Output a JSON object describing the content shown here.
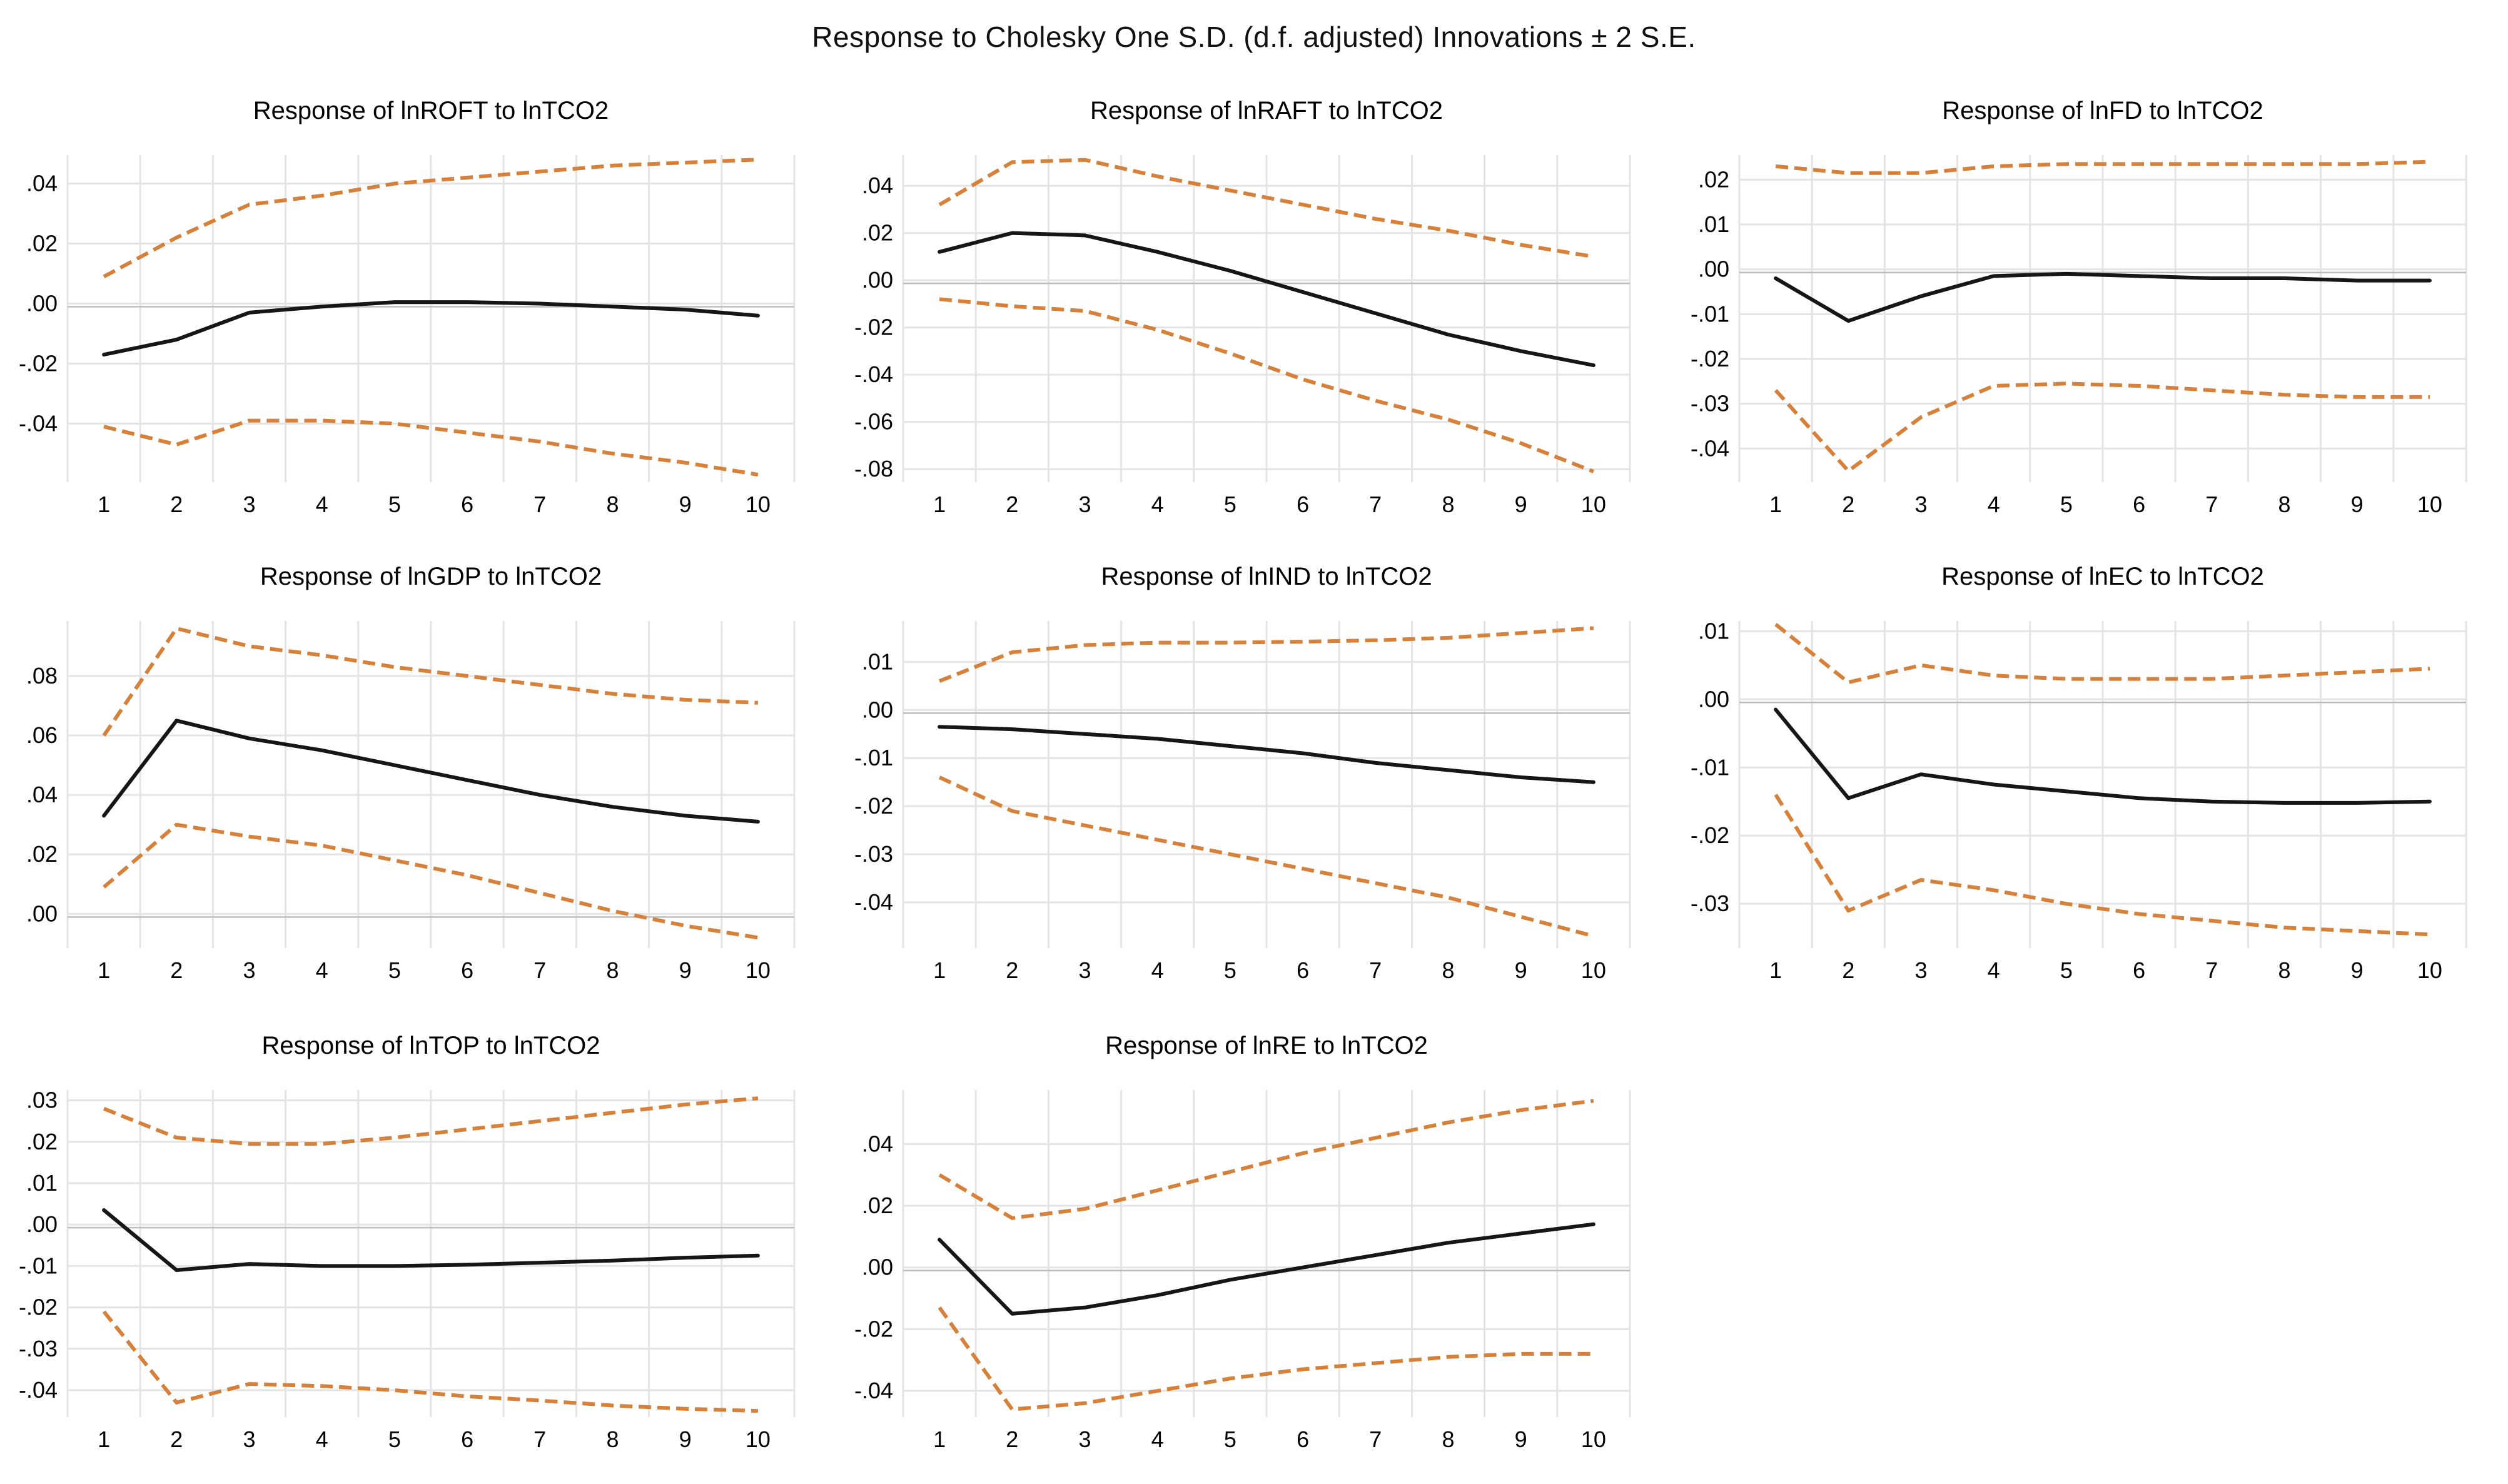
{
  "colors": {
    "response_line": "#161616",
    "band_line": "#d6803a",
    "gridline": "#e4e4e4",
    "zero_axis": "#bdbdbd",
    "text": "#000000",
    "background": "#ffffff"
  },
  "chart_data": {
    "type": "line",
    "figure_title": "Response to Cholesky One S.D. (d.f. adjusted) Innovations ± 2 S.E.",
    "layout": {
      "rows": 3,
      "cols": 3,
      "empty_cells": [
        "row3-col3"
      ],
      "grid": "on",
      "legend": "none"
    },
    "x": [
      1,
      2,
      3,
      4,
      5,
      6,
      7,
      8,
      9,
      10
    ],
    "x_tick_labels": [
      "1",
      "2",
      "3",
      "4",
      "5",
      "6",
      "7",
      "8",
      "9",
      "10"
    ],
    "xlim": [
      0.5,
      10.5
    ],
    "series_styles": {
      "response": {
        "stroke": "solid",
        "color_key": "response_line"
      },
      "upper_2se_band": {
        "stroke": "dashed",
        "color_key": "band_line"
      },
      "lower_2se_band": {
        "stroke": "dashed",
        "color_key": "band_line"
      }
    },
    "charts": [
      {
        "id": "lnROFT",
        "title": "Response of lnROFT to lnTCO2",
        "ylim": [
          -0.0595,
          0.0495
        ],
        "y_ticks": {
          "values": [
            0.04,
            0.02,
            0.0,
            -0.02,
            -0.04
          ],
          "labels": [
            ".04",
            ".02",
            ".00",
            "-.02",
            "-.04"
          ]
        },
        "series": [
          {
            "name": "upper_2se_band",
            "values": [
              0.009,
              0.022,
              0.033,
              0.036,
              0.04,
              0.042,
              0.044,
              0.046,
              0.047,
              0.048
            ]
          },
          {
            "name": "response",
            "values": [
              -0.017,
              -0.012,
              -0.003,
              -0.001,
              0.0005,
              0.0005,
              0.0,
              -0.001,
              -0.002,
              -0.004
            ]
          },
          {
            "name": "lower_2se_band",
            "values": [
              -0.041,
              -0.047,
              -0.039,
              -0.039,
              -0.04,
              -0.043,
              -0.046,
              -0.05,
              -0.053,
              -0.057
            ]
          }
        ]
      },
      {
        "id": "lnRAFT",
        "title": "Response of lnRAFT to lnTCO2",
        "ylim": [
          -0.0855,
          0.053
        ],
        "y_ticks": {
          "values": [
            0.04,
            0.02,
            0.0,
            -0.02,
            -0.04,
            -0.06,
            -0.08
          ],
          "labels": [
            ".04",
            ".02",
            ".00",
            "-.02",
            "-.04",
            "-.06",
            "-.08"
          ]
        },
        "series": [
          {
            "name": "upper_2se_band",
            "values": [
              0.032,
              0.05,
              0.051,
              0.044,
              0.038,
              0.032,
              0.026,
              0.021,
              0.015,
              0.01
            ]
          },
          {
            "name": "response",
            "values": [
              0.012,
              0.02,
              0.019,
              0.012,
              0.004,
              -0.005,
              -0.014,
              -0.023,
              -0.03,
              -0.036
            ]
          },
          {
            "name": "lower_2se_band",
            "values": [
              -0.008,
              -0.011,
              -0.013,
              -0.021,
              -0.031,
              -0.042,
              -0.051,
              -0.059,
              -0.069,
              -0.081
            ]
          }
        ]
      },
      {
        "id": "lnFD",
        "title": "Response of lnFD to lnTCO2",
        "ylim": [
          -0.0475,
          0.0255
        ],
        "y_ticks": {
          "values": [
            0.02,
            0.01,
            0.0,
            -0.01,
            -0.02,
            -0.03,
            -0.04
          ],
          "labels": [
            ".02",
            ".01",
            ".00",
            "-.01",
            "-.02",
            "-.03",
            "-.04"
          ]
        },
        "series": [
          {
            "name": "upper_2se_band",
            "values": [
              0.023,
              0.0215,
              0.0215,
              0.023,
              0.0235,
              0.0235,
              0.0235,
              0.0235,
              0.0235,
              0.024
            ]
          },
          {
            "name": "response",
            "values": [
              -0.002,
              -0.0115,
              -0.006,
              -0.0015,
              -0.001,
              -0.0015,
              -0.002,
              -0.002,
              -0.0025,
              -0.0025
            ]
          },
          {
            "name": "lower_2se_band",
            "values": [
              -0.027,
              -0.045,
              -0.033,
              -0.026,
              -0.0255,
              -0.026,
              -0.027,
              -0.028,
              -0.0285,
              -0.0285
            ]
          }
        ]
      },
      {
        "id": "lnGDP",
        "title": "Response of lnGDP to lnTCO2",
        "ylim": [
          -0.0115,
          0.0985
        ],
        "y_ticks": {
          "values": [
            0.08,
            0.06,
            0.04,
            0.02,
            0.0
          ],
          "labels": [
            ".08",
            ".06",
            ".04",
            ".02",
            ".00"
          ]
        },
        "series": [
          {
            "name": "upper_2se_band",
            "values": [
              0.06,
              0.096,
              0.09,
              0.087,
              0.083,
              0.08,
              0.077,
              0.074,
              0.072,
              0.071
            ]
          },
          {
            "name": "response",
            "values": [
              0.033,
              0.065,
              0.059,
              0.055,
              0.05,
              0.045,
              0.04,
              0.036,
              0.033,
              0.031
            ]
          },
          {
            "name": "lower_2se_band",
            "values": [
              0.009,
              0.03,
              0.026,
              0.023,
              0.018,
              0.013,
              0.007,
              0.001,
              -0.004,
              -0.008
            ]
          }
        ]
      },
      {
        "id": "lnIND",
        "title": "Response of lnIND to lnTCO2",
        "ylim": [
          -0.0495,
          0.0185
        ],
        "y_ticks": {
          "values": [
            0.01,
            0.0,
            -0.01,
            -0.02,
            -0.03,
            -0.04
          ],
          "labels": [
            ".01",
            ".00",
            "-.01",
            "-.02",
            "-.03",
            "-.04"
          ]
        },
        "series": [
          {
            "name": "upper_2se_band",
            "values": [
              0.006,
              0.012,
              0.0135,
              0.014,
              0.014,
              0.0142,
              0.0145,
              0.015,
              0.016,
              0.017
            ]
          },
          {
            "name": "response",
            "values": [
              -0.0035,
              -0.004,
              -0.005,
              -0.006,
              -0.0075,
              -0.009,
              -0.011,
              -0.0125,
              -0.014,
              -0.015
            ]
          },
          {
            "name": "lower_2se_band",
            "values": [
              -0.014,
              -0.021,
              -0.024,
              -0.027,
              -0.03,
              -0.033,
              -0.036,
              -0.039,
              -0.043,
              -0.047
            ]
          }
        ]
      },
      {
        "id": "lnEC",
        "title": "Response of lnEC to lnTCO2",
        "ylim": [
          -0.0365,
          0.0115
        ],
        "y_ticks": {
          "values": [
            0.01,
            0.0,
            -0.01,
            -0.02,
            -0.03
          ],
          "labels": [
            ".01",
            ".00",
            "-.01",
            "-.02",
            "-.03"
          ]
        },
        "series": [
          {
            "name": "upper_2se_band",
            "values": [
              0.011,
              0.0025,
              0.005,
              0.0035,
              0.003,
              0.003,
              0.003,
              0.0035,
              0.004,
              0.0045
            ]
          },
          {
            "name": "response",
            "values": [
              -0.0015,
              -0.0145,
              -0.011,
              -0.0125,
              -0.0135,
              -0.0145,
              -0.015,
              -0.0152,
              -0.0152,
              -0.015
            ]
          },
          {
            "name": "lower_2se_band",
            "values": [
              -0.014,
              -0.031,
              -0.0265,
              -0.028,
              -0.03,
              -0.0315,
              -0.0325,
              -0.0335,
              -0.034,
              -0.0345
            ]
          }
        ]
      },
      {
        "id": "lnTOP",
        "title": "Response of lnTOP to lnTCO2",
        "ylim": [
          -0.0465,
          0.0325
        ],
        "y_ticks": {
          "values": [
            0.03,
            0.02,
            0.01,
            0.0,
            -0.01,
            -0.02,
            -0.03,
            -0.04
          ],
          "labels": [
            ".03",
            ".02",
            ".01",
            ".00",
            "-.01",
            "-.02",
            "-.03",
            "-.04"
          ]
        },
        "series": [
          {
            "name": "upper_2se_band",
            "values": [
              0.028,
              0.021,
              0.0195,
              0.0195,
              0.021,
              0.023,
              0.025,
              0.027,
              0.029,
              0.0305
            ]
          },
          {
            "name": "response",
            "values": [
              0.0035,
              -0.011,
              -0.0095,
              -0.01,
              -0.01,
              -0.0097,
              -0.0092,
              -0.0087,
              -0.008,
              -0.0075
            ]
          },
          {
            "name": "lower_2se_band",
            "values": [
              -0.021,
              -0.043,
              -0.0385,
              -0.039,
              -0.04,
              -0.0415,
              -0.0425,
              -0.0437,
              -0.0445,
              -0.045
            ]
          }
        ]
      },
      {
        "id": "lnRE",
        "title": "Response of lnRE to lnTCO2",
        "ylim": [
          -0.0485,
          0.0575
        ],
        "y_ticks": {
          "values": [
            0.04,
            0.02,
            0.0,
            -0.02,
            -0.04
          ],
          "labels": [
            ".04",
            ".02",
            ".00",
            "-.02",
            "-.04"
          ]
        },
        "series": [
          {
            "name": "upper_2se_band",
            "values": [
              0.03,
              0.016,
              0.019,
              0.025,
              0.031,
              0.037,
              0.042,
              0.047,
              0.051,
              0.054
            ]
          },
          {
            "name": "response",
            "values": [
              0.009,
              -0.015,
              -0.013,
              -0.009,
              -0.004,
              0.0,
              0.004,
              0.008,
              0.011,
              0.014
            ]
          },
          {
            "name": "lower_2se_band",
            "values": [
              -0.013,
              -0.046,
              -0.044,
              -0.04,
              -0.036,
              -0.033,
              -0.031,
              -0.029,
              -0.028,
              -0.028
            ]
          }
        ]
      }
    ]
  }
}
